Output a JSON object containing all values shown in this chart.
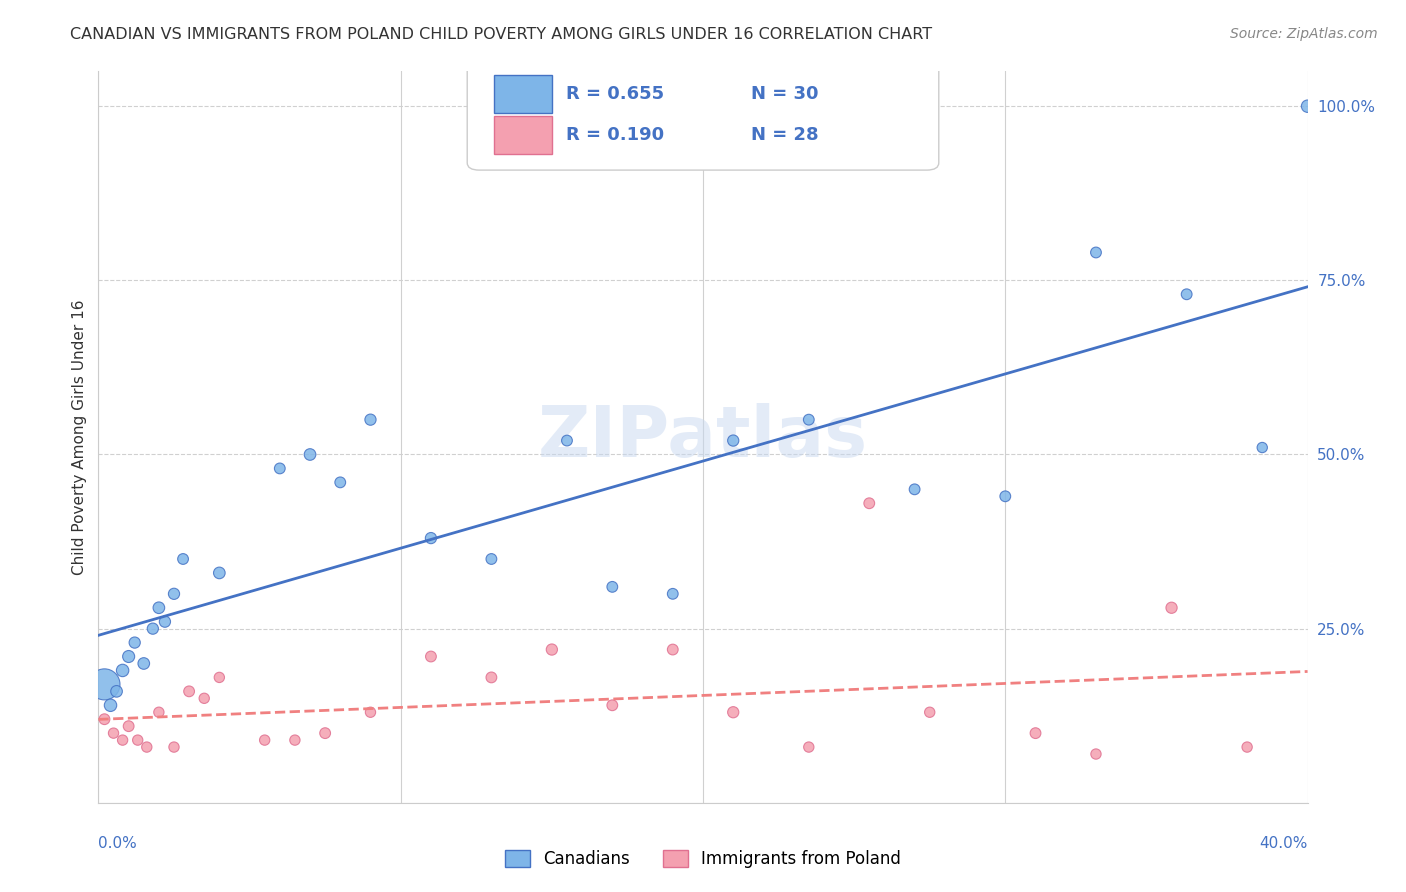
{
  "title": "CANADIAN VS IMMIGRANTS FROM POLAND CHILD POVERTY AMONG GIRLS UNDER 16 CORRELATION CHART",
  "source": "Source: ZipAtlas.com",
  "ylabel": "Child Poverty Among Girls Under 16",
  "right_yticks": [
    0.0,
    0.25,
    0.5,
    0.75,
    1.0
  ],
  "right_yticklabels": [
    "",
    "25.0%",
    "50.0%",
    "75.0%",
    "100.0%"
  ],
  "blue_R": "0.655",
  "blue_N": "30",
  "pink_R": "0.190",
  "pink_N": "28",
  "blue_color": "#7EB5E8",
  "pink_color": "#F4A0B0",
  "blue_line_color": "#4472C4",
  "pink_line_color": "#F08080",
  "pink_edge_color": "#e07090",
  "watermark": "ZIPatlas",
  "canadians_x": [
    0.002,
    0.004,
    0.006,
    0.008,
    0.01,
    0.012,
    0.015,
    0.018,
    0.02,
    0.022,
    0.025,
    0.028,
    0.04,
    0.06,
    0.07,
    0.08,
    0.09,
    0.11,
    0.13,
    0.155,
    0.17,
    0.19,
    0.21,
    0.235,
    0.27,
    0.3,
    0.33,
    0.36,
    0.385,
    0.4
  ],
  "canadians_y": [
    0.17,
    0.14,
    0.16,
    0.19,
    0.21,
    0.23,
    0.2,
    0.25,
    0.28,
    0.26,
    0.3,
    0.35,
    0.33,
    0.48,
    0.5,
    0.46,
    0.55,
    0.38,
    0.35,
    0.52,
    0.31,
    0.3,
    0.52,
    0.55,
    0.45,
    0.44,
    0.79,
    0.73,
    0.51,
    1.0
  ],
  "canadians_size": [
    500,
    80,
    70,
    80,
    75,
    65,
    70,
    65,
    70,
    65,
    65,
    60,
    70,
    60,
    70,
    60,
    65,
    65,
    60,
    60,
    60,
    60,
    65,
    60,
    60,
    60,
    60,
    60,
    55,
    80
  ],
  "poland_x": [
    0.002,
    0.005,
    0.008,
    0.01,
    0.013,
    0.016,
    0.02,
    0.025,
    0.03,
    0.035,
    0.04,
    0.055,
    0.065,
    0.075,
    0.09,
    0.11,
    0.13,
    0.15,
    0.17,
    0.19,
    0.21,
    0.235,
    0.255,
    0.275,
    0.31,
    0.33,
    0.355,
    0.38
  ],
  "poland_y": [
    0.12,
    0.1,
    0.09,
    0.11,
    0.09,
    0.08,
    0.13,
    0.08,
    0.16,
    0.15,
    0.18,
    0.09,
    0.09,
    0.1,
    0.13,
    0.21,
    0.18,
    0.22,
    0.14,
    0.22,
    0.13,
    0.08,
    0.43,
    0.13,
    0.1,
    0.07,
    0.28,
    0.08
  ],
  "poland_size": [
    60,
    55,
    55,
    60,
    55,
    55,
    55,
    55,
    60,
    55,
    55,
    55,
    55,
    60,
    55,
    60,
    60,
    65,
    60,
    60,
    65,
    55,
    60,
    55,
    60,
    55,
    65,
    55
  ],
  "xlim": [
    0.0,
    0.4
  ],
  "ylim": [
    0.0,
    1.05
  ],
  "background_color": "#ffffff",
  "grid_color": "#d0d0d0"
}
